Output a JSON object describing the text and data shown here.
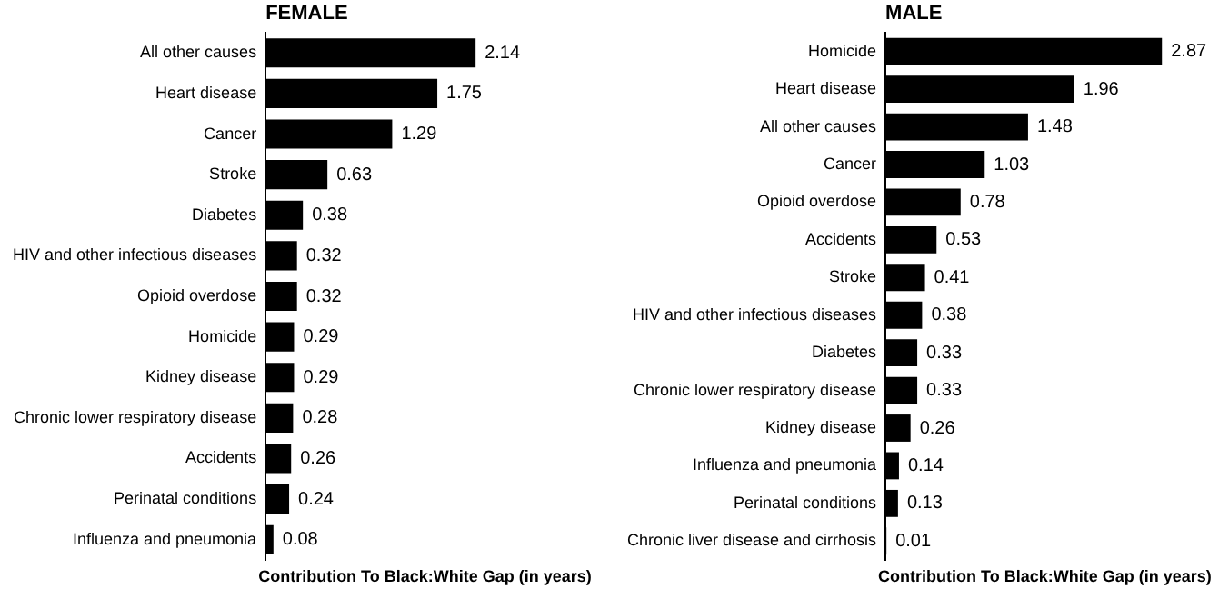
{
  "chart_data": [
    {
      "type": "bar",
      "orientation": "horizontal",
      "title": "FEMALE",
      "xlabel": "Contribution To Black:White Gap (in years)",
      "categories": [
        "All other causes",
        "Heart disease",
        "Cancer",
        "Stroke",
        "Diabetes",
        "HIV and other infectious diseases",
        "Opioid overdose",
        "Homicide",
        "Kidney disease",
        "Chronic lower respiratory disease",
        "Accidents",
        "Perinatal conditions",
        "Influenza and pneumonia"
      ],
      "values": [
        2.14,
        1.75,
        1.29,
        0.63,
        0.38,
        0.32,
        0.32,
        0.29,
        0.29,
        0.28,
        0.26,
        0.24,
        0.08
      ],
      "color": "#000000",
      "data_labels": true,
      "grid": false,
      "tick_labels": "y"
    },
    {
      "type": "bar",
      "orientation": "horizontal",
      "title": "MALE",
      "xlabel": "Contribution To Black:White Gap (in years)",
      "categories": [
        "Homicide",
        "Heart disease",
        "All other causes",
        "Cancer",
        "Opioid overdose",
        "Accidents",
        "Stroke",
        "HIV and other infectious diseases",
        "Diabetes",
        "Chronic lower respiratory disease",
        "Kidney disease",
        "Influenza and pneumonia",
        "Perinatal conditions",
        "Chronic liver disease and cirrhosis"
      ],
      "values": [
        2.87,
        1.96,
        1.48,
        1.03,
        0.78,
        0.53,
        0.41,
        0.38,
        0.33,
        0.33,
        0.26,
        0.14,
        0.13,
        0.01
      ],
      "color": "#000000",
      "data_labels": true,
      "grid": false,
      "tick_labels": "y"
    }
  ]
}
